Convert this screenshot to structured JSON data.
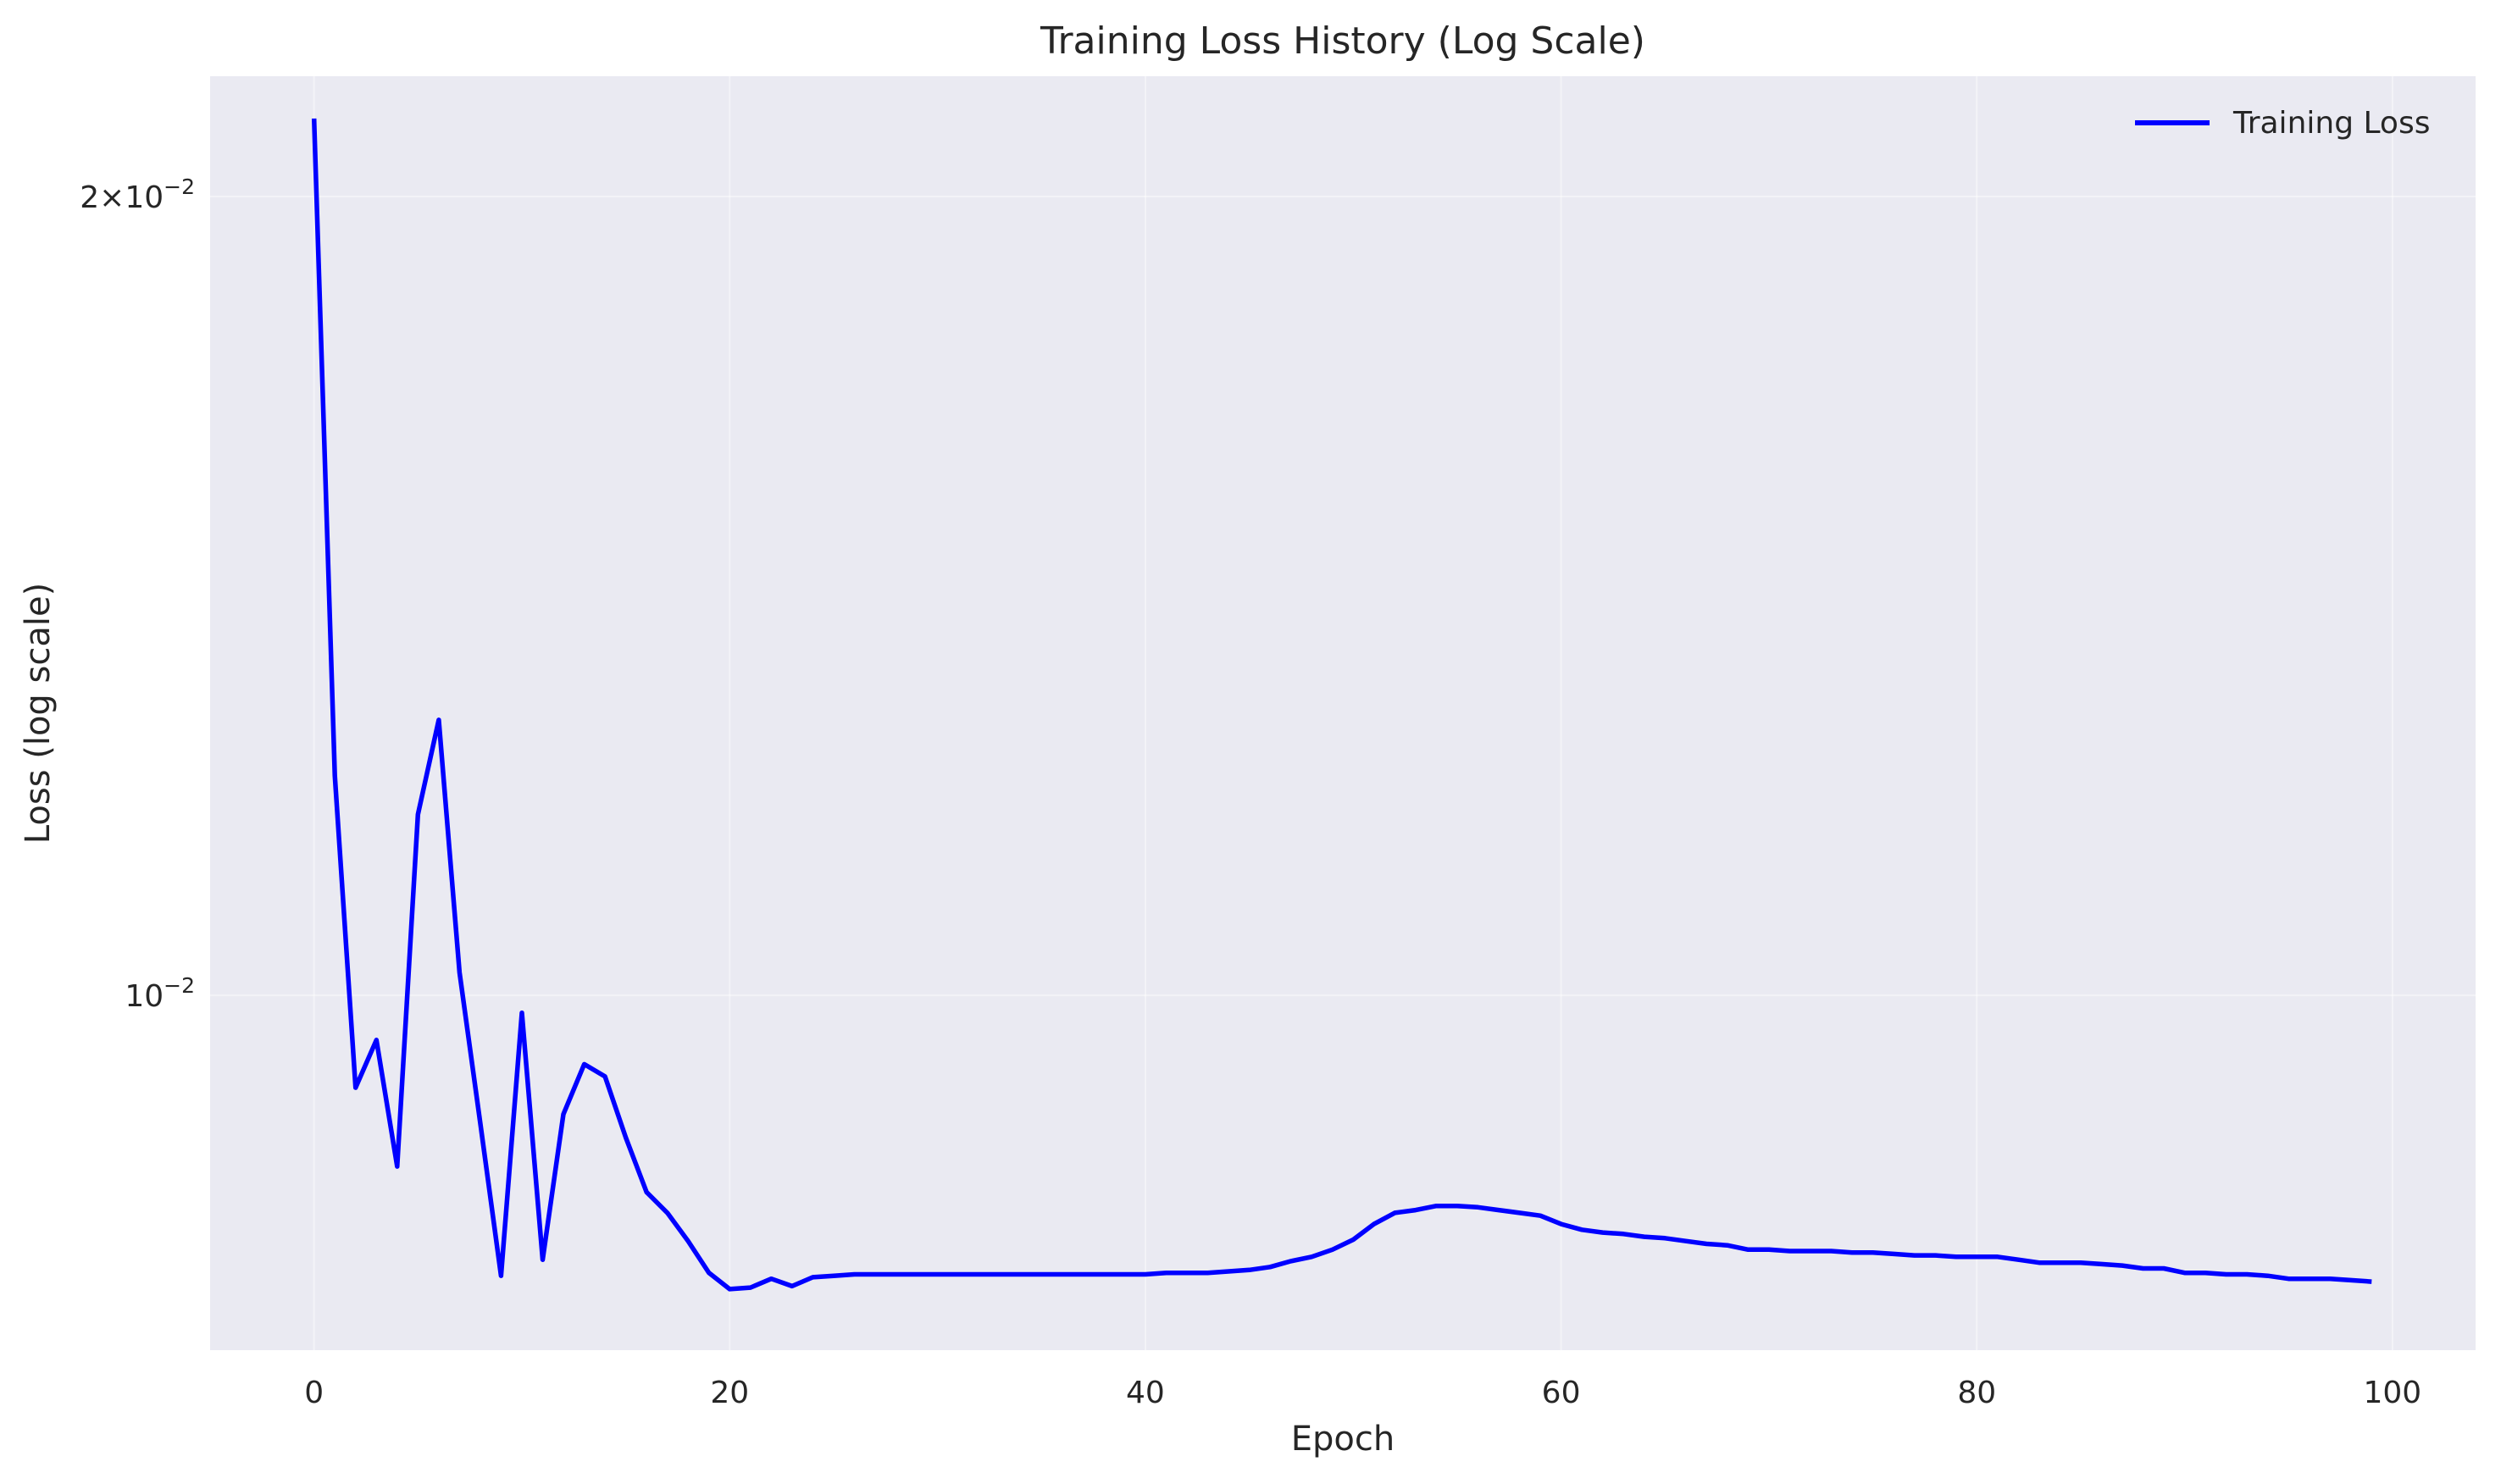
{
  "chart_data": {
    "type": "line",
    "title": "Training Loss History (Log Scale)",
    "xlabel": "Epoch",
    "ylabel": "Loss (log scale)",
    "xlim": [
      -5,
      104
    ],
    "ylim": [
      0.00735,
      0.0222
    ],
    "yscale": "log",
    "grid": true,
    "legend_position": "top-right",
    "x_ticks": [
      0,
      20,
      40,
      60,
      80,
      100
    ],
    "y_ticks": [
      {
        "value": 0.02,
        "base": "2×10",
        "exp": "−2"
      },
      {
        "value": 0.01,
        "base": "10",
        "exp": "−2"
      }
    ],
    "colors": {
      "plot_bg": "#eaeaf2",
      "line": "#0000ff"
    },
    "series": [
      {
        "name": "Training Loss",
        "x": [
          0,
          1,
          2,
          3,
          4,
          5,
          6,
          7,
          8,
          9,
          10,
          11,
          12,
          13,
          14,
          15,
          16,
          17,
          18,
          19,
          20,
          21,
          22,
          23,
          24,
          25,
          26,
          27,
          28,
          29,
          30,
          31,
          32,
          33,
          34,
          35,
          36,
          37,
          38,
          39,
          40,
          41,
          42,
          43,
          44,
          45,
          46,
          47,
          48,
          49,
          50,
          51,
          52,
          53,
          54,
          55,
          56,
          57,
          58,
          59,
          60,
          61,
          62,
          63,
          64,
          65,
          66,
          67,
          68,
          69,
          70,
          71,
          72,
          73,
          74,
          75,
          76,
          77,
          78,
          79,
          80,
          81,
          82,
          83,
          84,
          85,
          86,
          87,
          88,
          89,
          90,
          91,
          92,
          93,
          94,
          95,
          96,
          97,
          98,
          99
        ],
        "values": [
          0.0214,
          0.0121,
          0.00923,
          0.00962,
          0.00862,
          0.0117,
          0.0127,
          0.0102,
          0.00895,
          0.00784,
          0.00985,
          0.00795,
          0.00902,
          0.00942,
          0.00932,
          0.00884,
          0.00843,
          0.00828,
          0.00808,
          0.00786,
          0.00775,
          0.00776,
          0.00782,
          0.00777,
          0.00783,
          0.00784,
          0.00785,
          0.00785,
          0.00785,
          0.00785,
          0.00785,
          0.00785,
          0.00785,
          0.00785,
          0.00785,
          0.00785,
          0.00785,
          0.00785,
          0.00785,
          0.00785,
          0.00785,
          0.00786,
          0.00786,
          0.00786,
          0.00787,
          0.00788,
          0.0079,
          0.00794,
          0.00797,
          0.00802,
          0.00809,
          0.0082,
          0.00828,
          0.0083,
          0.00833,
          0.00833,
          0.00832,
          0.0083,
          0.00828,
          0.00826,
          0.0082,
          0.00816,
          0.00814,
          0.00813,
          0.00811,
          0.0081,
          0.00808,
          0.00806,
          0.00805,
          0.00802,
          0.00802,
          0.00801,
          0.00801,
          0.00801,
          0.008,
          0.008,
          0.00799,
          0.00798,
          0.00798,
          0.00797,
          0.00797,
          0.00797,
          0.00795,
          0.00793,
          0.00793,
          0.00793,
          0.00792,
          0.00791,
          0.00789,
          0.00789,
          0.00786,
          0.00786,
          0.00785,
          0.00785,
          0.00784,
          0.00782,
          0.00782,
          0.00782,
          0.00781,
          0.0078
        ]
      }
    ]
  }
}
